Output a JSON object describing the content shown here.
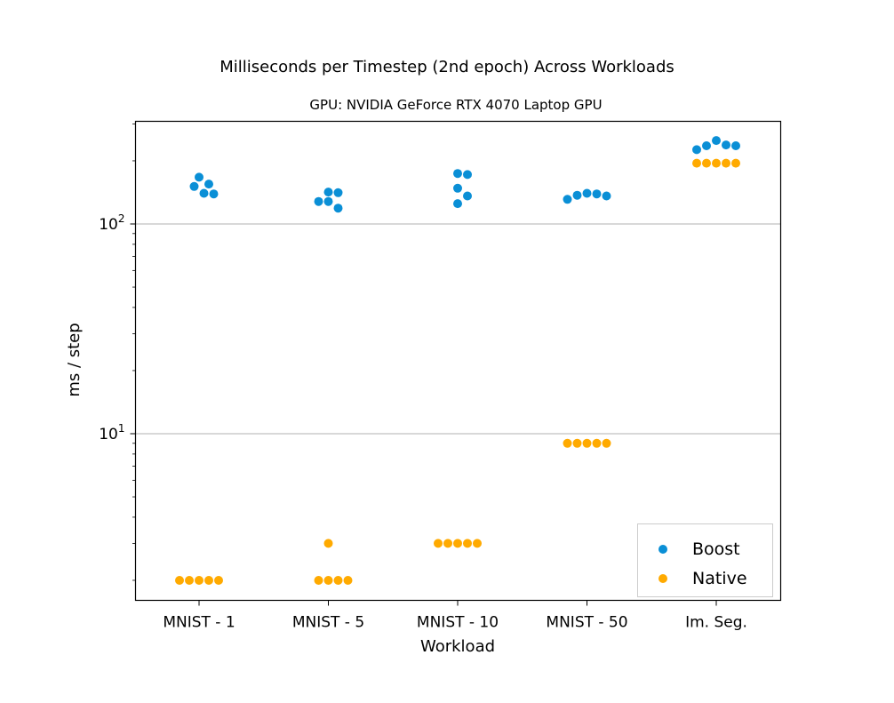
{
  "chart_data": {
    "type": "scatter",
    "title": "Milliseconds per Timestep (2nd epoch) Across Workloads",
    "subtitle": "GPU: NVIDIA GeForce RTX 4070 Laptop GPU",
    "xlabel": "Workload",
    "ylabel": "ms / step",
    "yscale": "log",
    "ylim": [
      1.6,
      300
    ],
    "categories": [
      "MNIST - 1",
      "MNIST - 5",
      "MNIST - 10",
      "MNIST - 50",
      "Im. Seg."
    ],
    "y_tick_labels": [
      {
        "base": "10",
        "exp": "1",
        "value": 10
      },
      {
        "base": "10",
        "exp": "2",
        "value": 100
      }
    ],
    "grid": "horizontal major",
    "legend_position": "lower-right",
    "series": [
      {
        "name": "Boost",
        "color": "#0a8fd6",
        "values": [
          [
            167,
            151,
            155,
            139,
            140
          ],
          [
            142,
            128,
            141,
            119,
            128
          ],
          [
            174,
            172,
            148,
            136,
            125
          ],
          [
            139,
            137,
            131,
            136,
            140
          ],
          [
            250,
            236,
            226,
            236,
            238
          ]
        ]
      },
      {
        "name": "Native",
        "color": "#ffaa00",
        "values": [
          [
            2,
            2,
            2,
            2,
            2
          ],
          [
            2,
            2,
            3,
            2,
            2
          ],
          [
            3,
            3,
            3,
            3,
            3
          ],
          [
            9,
            9,
            9,
            9,
            9
          ],
          [
            195,
            195,
            195,
            195,
            195
          ]
        ]
      }
    ]
  }
}
